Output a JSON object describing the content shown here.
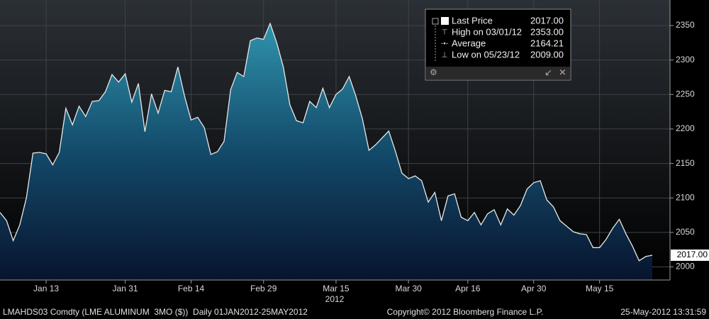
{
  "chart_data": {
    "type": "area",
    "x": [
      "2012-01-04",
      "2012-01-05",
      "2012-01-06",
      "2012-01-09",
      "2012-01-10",
      "2012-01-11",
      "2012-01-12",
      "2012-01-13",
      "2012-01-16",
      "2012-01-17",
      "2012-01-18",
      "2012-01-19",
      "2012-01-20",
      "2012-01-23",
      "2012-01-24",
      "2012-01-25",
      "2012-01-26",
      "2012-01-27",
      "2012-01-30",
      "2012-01-31",
      "2012-02-01",
      "2012-02-02",
      "2012-02-03",
      "2012-02-06",
      "2012-02-07",
      "2012-02-08",
      "2012-02-09",
      "2012-02-10",
      "2012-02-13",
      "2012-02-14",
      "2012-02-15",
      "2012-02-16",
      "2012-02-17",
      "2012-02-20",
      "2012-02-21",
      "2012-02-22",
      "2012-02-23",
      "2012-02-24",
      "2012-02-27",
      "2012-02-28",
      "2012-02-29",
      "2012-03-01",
      "2012-03-02",
      "2012-03-05",
      "2012-03-06",
      "2012-03-07",
      "2012-03-08",
      "2012-03-09",
      "2012-03-12",
      "2012-03-13",
      "2012-03-14",
      "2012-03-15",
      "2012-03-16",
      "2012-03-19",
      "2012-03-20",
      "2012-03-21",
      "2012-03-22",
      "2012-03-23",
      "2012-03-26",
      "2012-03-27",
      "2012-03-28",
      "2012-03-29",
      "2012-03-30",
      "2012-04-02",
      "2012-04-03",
      "2012-04-04",
      "2012-04-05",
      "2012-04-10",
      "2012-04-11",
      "2012-04-12",
      "2012-04-13",
      "2012-04-16",
      "2012-04-17",
      "2012-04-18",
      "2012-04-19",
      "2012-04-20",
      "2012-04-23",
      "2012-04-24",
      "2012-04-25",
      "2012-04-26",
      "2012-04-27",
      "2012-04-30",
      "2012-05-01",
      "2012-05-02",
      "2012-05-03",
      "2012-05-04",
      "2012-05-08",
      "2012-05-09",
      "2012-05-10",
      "2012-05-11",
      "2012-05-14",
      "2012-05-15",
      "2012-05-16",
      "2012-05-17",
      "2012-05-18",
      "2012-05-21",
      "2012-05-22",
      "2012-05-23",
      "2012-05-24",
      "2012-05-25"
    ],
    "series": [
      {
        "name": "Last Price",
        "color": "#e8e8e8",
        "values": [
          2079,
          2067,
          2038,
          2061,
          2100,
          2165,
          2166,
          2164,
          2148,
          2166,
          2230,
          2206,
          2233,
          2218,
          2240,
          2241,
          2254,
          2279,
          2268,
          2280,
          2239,
          2266,
          2196,
          2251,
          2223,
          2256,
          2254,
          2290,
          2248,
          2213,
          2217,
          2202,
          2163,
          2167,
          2182,
          2257,
          2282,
          2276,
          2328,
          2332,
          2330,
          2353,
          2325,
          2290,
          2235,
          2212,
          2209,
          2240,
          2231,
          2259,
          2231,
          2250,
          2258,
          2276,
          2248,
          2215,
          2169,
          2177,
          2187,
          2197,
          2168,
          2136,
          2128,
          2132,
          2125,
          2094,
          2108,
          2067,
          2103,
          2106,
          2072,
          2067,
          2079,
          2061,
          2077,
          2083,
          2061,
          2084,
          2075,
          2089,
          2113,
          2122,
          2125,
          2097,
          2087,
          2067,
          2059,
          2051,
          2048,
          2047,
          2028,
          2028,
          2040,
          2056,
          2069,
          2048,
          2030,
          2009,
          2015,
          2017
        ]
      }
    ],
    "ylim": [
      1981,
      2387
    ],
    "yticks": [
      2000,
      2050,
      2100,
      2150,
      2200,
      2250,
      2300,
      2350
    ],
    "xticks": [
      {
        "value": "2012-01-13",
        "label": "Jan 13"
      },
      {
        "value": "2012-01-31",
        "label": "Jan 31"
      },
      {
        "value": "2012-02-14",
        "label": "Feb 14"
      },
      {
        "value": "2012-02-29",
        "label": "Feb 29"
      },
      {
        "value": "2012-03-15",
        "label": "Mar 15"
      },
      {
        "value": "2012-03-30",
        "label": "Mar 30"
      },
      {
        "value": "2012-04-16",
        "label": "Apr 16"
      },
      {
        "value": "2012-04-30",
        "label": "Apr 30"
      },
      {
        "value": "2012-05-15",
        "label": "May 15"
      }
    ],
    "x_year_label": "2012",
    "grid": true,
    "last_value_label": "2017.00",
    "legend_box": [
      {
        "label": "High on 03/01/12",
        "value": "2353.00"
      },
      {
        "label": "Average",
        "value": "2164.21"
      },
      {
        "label": "Low on 05/23/12",
        "value": "2009.00"
      }
    ],
    "footer": {
      "left": "LMAHDS03 Comdty (LME ALUMINUM  3MO ($))  Daily 01JAN2012-25MAY2012",
      "center": "Copyright© 2012 Bloomberg Finance L.P.",
      "right": "25-May-2012 13:31:59"
    }
  }
}
